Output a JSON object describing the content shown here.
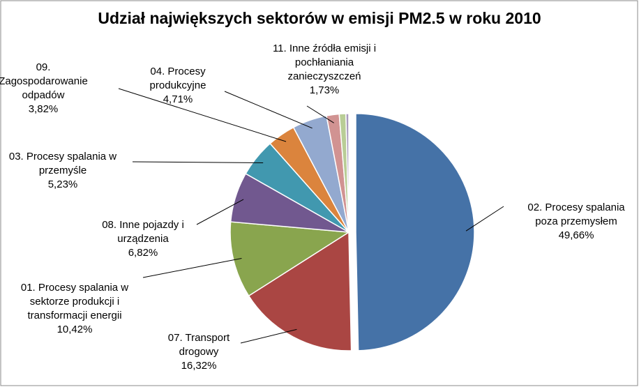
{
  "chart_data": {
    "type": "pie",
    "title": "Udział największych sektorów w emisji PM2.5 w roku 2010",
    "categories": [
      "02. Procesy spalania poza przemysłem",
      "07. Transport drogowy",
      "01. Procesy spalania w sektorze produkcji i transformacji energii",
      "08. Inne pojazdy i urządzenia",
      "03. Procesy spalania w przemyśle",
      "09. Zagospodarowanie odpadów",
      "04. Procesy produkcyjne",
      "11. Inne źródła emisji i pochłaniania zanieczyszczeń",
      null,
      null
    ],
    "values": [
      49.66,
      16.32,
      10.42,
      6.82,
      5.23,
      3.82,
      4.71,
      1.73,
      0.9,
      0.39
    ],
    "value_labels": [
      "49,66%",
      "16,32%",
      "10,42%",
      "6,82%",
      "5,23%",
      "3,82%",
      "4,71%",
      "1,73%",
      null,
      null
    ],
    "colors": [
      "#4572a7",
      "#aa4643",
      "#89a54e",
      "#71588f",
      "#4198af",
      "#db843d",
      "#93a9cf",
      "#d19392",
      "#b9cd96",
      "#a99bbd"
    ]
  }
}
